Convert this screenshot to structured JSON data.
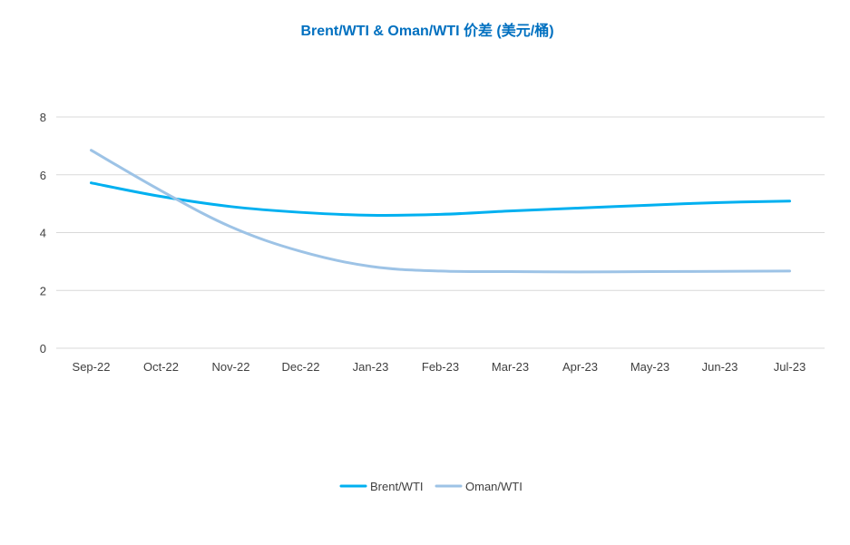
{
  "chart_data": {
    "type": "line",
    "title": "Brent/WTI & Oman/WTI 价差 (美元/桶)",
    "xlabel": "",
    "ylabel": "",
    "categories": [
      "Sep-22",
      "Oct-22",
      "Nov-22",
      "Dec-22",
      "Jan-23",
      "Feb-23",
      "Mar-23",
      "Apr-23",
      "May-23",
      "Jun-23",
      "Jul-23"
    ],
    "yticks": [
      "0",
      "2",
      "4",
      "6",
      "8"
    ],
    "ylim": [
      0,
      8
    ],
    "grid": true,
    "legend_position": "bottom-center",
    "series": [
      {
        "name": "Brent/WTI",
        "color": "#00B0F0",
        "values": [
          5.72,
          5.25,
          4.9,
          4.7,
          4.6,
          4.63,
          4.75,
          4.85,
          4.95,
          5.04,
          5.09
        ]
      },
      {
        "name": "Oman/WTI",
        "color": "#9DC3E6",
        "values": [
          6.85,
          5.45,
          4.2,
          3.35,
          2.83,
          2.67,
          2.65,
          2.64,
          2.65,
          2.66,
          2.67
        ]
      }
    ],
    "title_color": "#0070C0",
    "grid_color": "#D9D9D9"
  }
}
